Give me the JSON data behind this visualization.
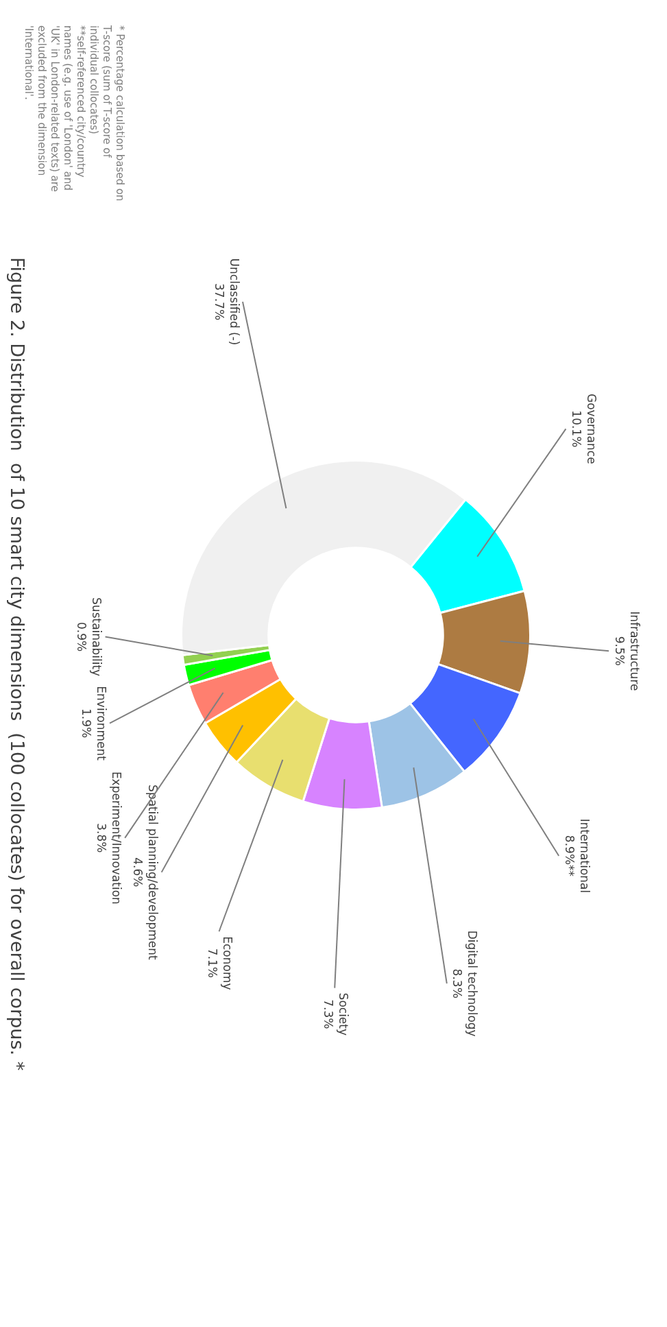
{
  "chart_data": {
    "type": "donut",
    "title": "Figure 2. Distribution  of 10 smart city dimensions  (100 collocates) for overall corpus. *",
    "categories": [
      "Governance",
      "Infrastructure",
      "International",
      "Digital technology",
      "Society",
      "Economy",
      "Spatial planning/development",
      "Experiment/Innovation",
      "Environment",
      "Sustainability",
      "Unclassified (-)"
    ],
    "values": [
      10.1,
      9.5,
      8.9,
      8.3,
      7.3,
      7.1,
      4.6,
      3.8,
      1.9,
      0.9,
      37.7
    ],
    "value_labels": [
      "10.1%",
      "9.5%",
      "8.9%**",
      "8.3%",
      "7.3%",
      "7.1%",
      "4.6%",
      "3.8%",
      "1.9%",
      "0.9%",
      "37.7%"
    ],
    "colors": [
      "#00ffff",
      "#ad7b42",
      "#4466ff",
      "#9dc3e6",
      "#d783ff",
      "#e8df6f",
      "#ffc000",
      "#ff7f6f",
      "#00ff00",
      "#92d050",
      "#f0f0f0"
    ],
    "annotations": [
      "* Percentage calculation based on T-score (sum of T-score of individual collocates)",
      "**self-referenced city/country names (e.g. use of 'London' and 'UK' in London-related texts) are excluded from the dimension 'International'."
    ]
  }
}
